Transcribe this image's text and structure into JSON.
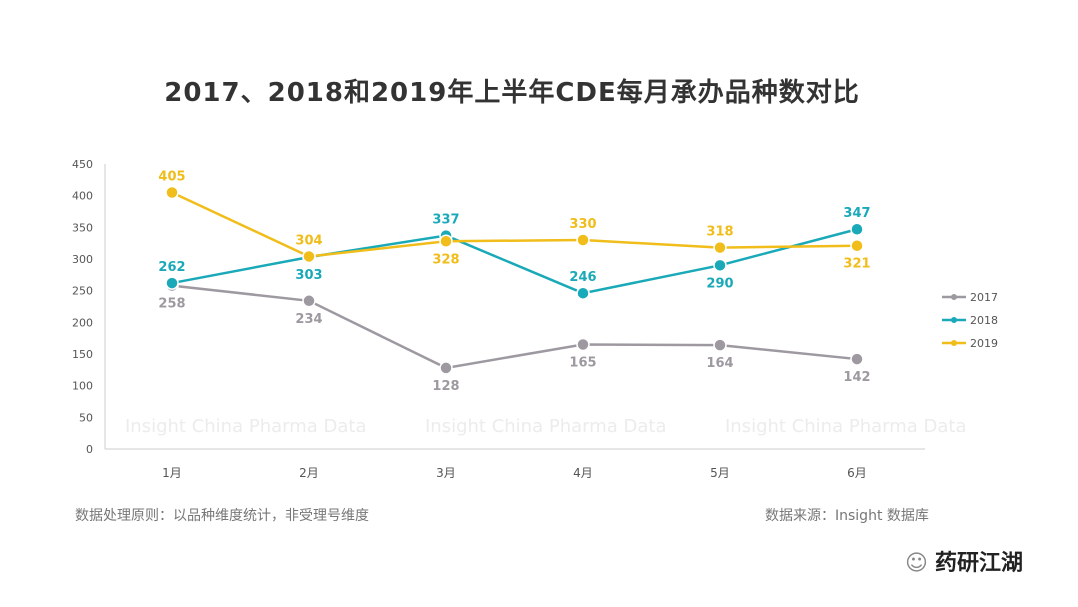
{
  "chart_data": {
    "type": "line",
    "title": "2017、2018和2019年上半年CDE每月承办品种数对比",
    "categories": [
      "1月",
      "2月",
      "3月",
      "4月",
      "5月",
      "6月"
    ],
    "ylim": [
      0,
      450
    ],
    "yticks": [
      0,
      50,
      100,
      150,
      200,
      250,
      300,
      350,
      400,
      450
    ],
    "grid": false,
    "legend": "right",
    "series": [
      {
        "name": "2017",
        "color": "#9e99a0",
        "values": [
          258,
          234,
          128,
          165,
          164,
          142
        ]
      },
      {
        "name": "2018",
        "color": "#1aa9b8",
        "values": [
          262,
          303,
          337,
          246,
          290,
          347
        ]
      },
      {
        "name": "2019",
        "color": "#f0bd1a",
        "values": [
          405,
          304,
          328,
          330,
          318,
          321
        ]
      }
    ],
    "watermark": "Insight China Pharma Data"
  },
  "footer": {
    "note": "数据处理原则：以品种维度统计，非受理号维度",
    "source": "数据来源：Insight 数据库"
  },
  "logo": "药研江湖"
}
